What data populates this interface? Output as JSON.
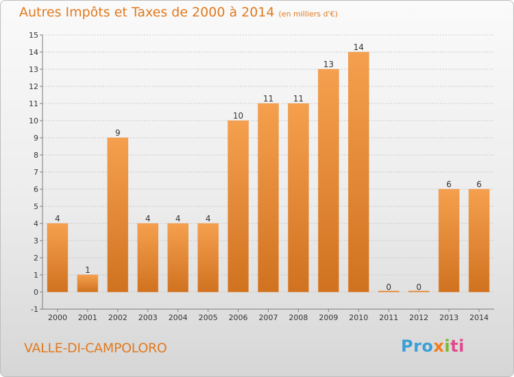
{
  "title": {
    "main": "Autres Impôts et Taxes de 2000 à 2014",
    "unit": "(en milliers d'€)"
  },
  "location": "VALLE-DI-CAMPOLORO",
  "brand": {
    "p1": "Pro",
    "p2": "x",
    "p3": "i",
    "p4": "ti"
  },
  "colors": {
    "bar_top": "#f5a04e",
    "bar_bottom": "#d07220",
    "accent": "#e07a1f",
    "grid": "#c8c8c8"
  },
  "chart_data": {
    "type": "bar",
    "categories": [
      "2000",
      "2001",
      "2002",
      "2003",
      "2004",
      "2005",
      "2006",
      "2007",
      "2008",
      "2009",
      "2010",
      "2011",
      "2012",
      "2013",
      "2014"
    ],
    "values": [
      4,
      1,
      9,
      4,
      4,
      4,
      10,
      11,
      11,
      13,
      14,
      0,
      0,
      6,
      6
    ],
    "ylim": [
      -1,
      15
    ],
    "yticks": [
      -1,
      0,
      1,
      2,
      3,
      4,
      5,
      6,
      7,
      8,
      9,
      10,
      11,
      12,
      13,
      14,
      15
    ],
    "grid": true,
    "legend": "none"
  }
}
